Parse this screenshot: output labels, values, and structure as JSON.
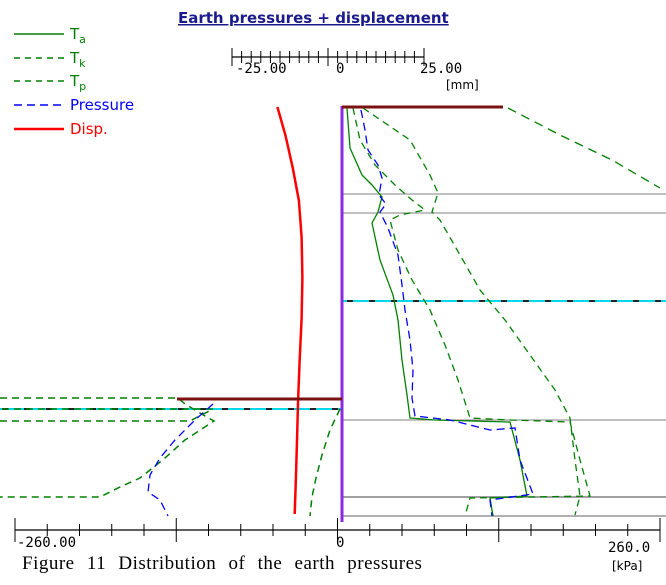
{
  "chart_data": {
    "type": "line",
    "title": "Earth pressures + displacement",
    "legend_position": "top-left",
    "legend": [
      {
        "label": "T",
        "sub": "a",
        "color": "#008000",
        "dash": "solid"
      },
      {
        "label": "T",
        "sub": "k",
        "color": "#008000",
        "dash": "dashed"
      },
      {
        "label": "T",
        "sub": "p",
        "color": "#008000",
        "dash": "dashed"
      },
      {
        "label": "Pressure",
        "sub": "",
        "color": "#0000ff",
        "dash": "dashed"
      },
      {
        "label": "Disp.",
        "sub": "",
        "color": "#ff0000",
        "dash": "solid"
      }
    ],
    "displacement_axis": {
      "unit": "[mm]",
      "range": [
        -25,
        25
      ],
      "tick_labels": [
        "-25.00",
        "0",
        "25.00"
      ]
    },
    "pressure_axis": {
      "unit": "[kPa]",
      "range": [
        -260,
        260
      ],
      "tick_labels": [
        "-260.00",
        "0",
        "260.0"
      ]
    },
    "depth_range": [
      0,
      1
    ],
    "series": [
      {
        "name": "Disp.",
        "color": "#ff0000",
        "axis": "displacement",
        "points": [
          [
            -16.3,
            0
          ],
          [
            -14.2,
            0.07
          ],
          [
            -12.3,
            0.15
          ],
          [
            -10.7,
            0.23
          ],
          [
            -10,
            0.32
          ],
          [
            -9.8,
            0.42
          ],
          [
            -10,
            0.52
          ],
          [
            -10.5,
            0.62
          ],
          [
            -10.9,
            0.72
          ],
          [
            -11.2,
            0.82
          ],
          [
            -11.5,
            0.92
          ],
          [
            -11.8,
            1
          ]
        ]
      },
      {
        "name": "T",
        "color": "#008000",
        "axis": "pressure",
        "points": [
          [
            20,
            0.07
          ],
          [
            35,
            0.25
          ],
          [
            40,
            0.27
          ],
          [
            35,
            0.31
          ],
          [
            70,
            0.53
          ],
          [
            90,
            0.68
          ],
          [
            120,
            1
          ]
        ]
      },
      {
        "name": "T",
        "color": "#008000",
        "axis": "pressure",
        "points": [
          [
            25,
            0
          ],
          [
            40,
            0.15
          ],
          [
            60,
            0.25
          ],
          [
            40,
            0.27
          ],
          [
            55,
            0.5
          ],
          [
            75,
            0.68
          ],
          [
            285,
            0.68
          ],
          [
            300,
            0.93
          ],
          [
            215,
            0.93
          ]
        ]
      },
      {
        "name": "T",
        "color": "#008000",
        "axis": "pressure",
        "points": [
          [
            45,
            0
          ],
          [
            110,
            0.2
          ],
          [
            115,
            0.25
          ],
          [
            110,
            0.27
          ],
          [
            160,
            0.5
          ],
          [
            215,
            0.68
          ],
          [
            225,
            0.93
          ],
          [
            240,
            1
          ]
        ]
      },
      {
        "name": "Pressure",
        "color": "#0000ff",
        "axis": "pressure",
        "points": [
          [
            35,
            0.05
          ],
          [
            38,
            0.15
          ],
          [
            55,
            0.23
          ],
          [
            48,
            0.27
          ],
          [
            62,
            0.45
          ],
          [
            63,
            0.6
          ],
          [
            68,
            0.65
          ],
          [
            72,
            0.68
          ],
          [
            180,
            0.68
          ],
          [
            195,
            0.93
          ],
          [
            160,
            0.93
          ],
          [
            148,
            1
          ]
        ]
      }
    ]
  },
  "caption": {
    "text": "Figure 11 Distribution of the earth pressures"
  }
}
